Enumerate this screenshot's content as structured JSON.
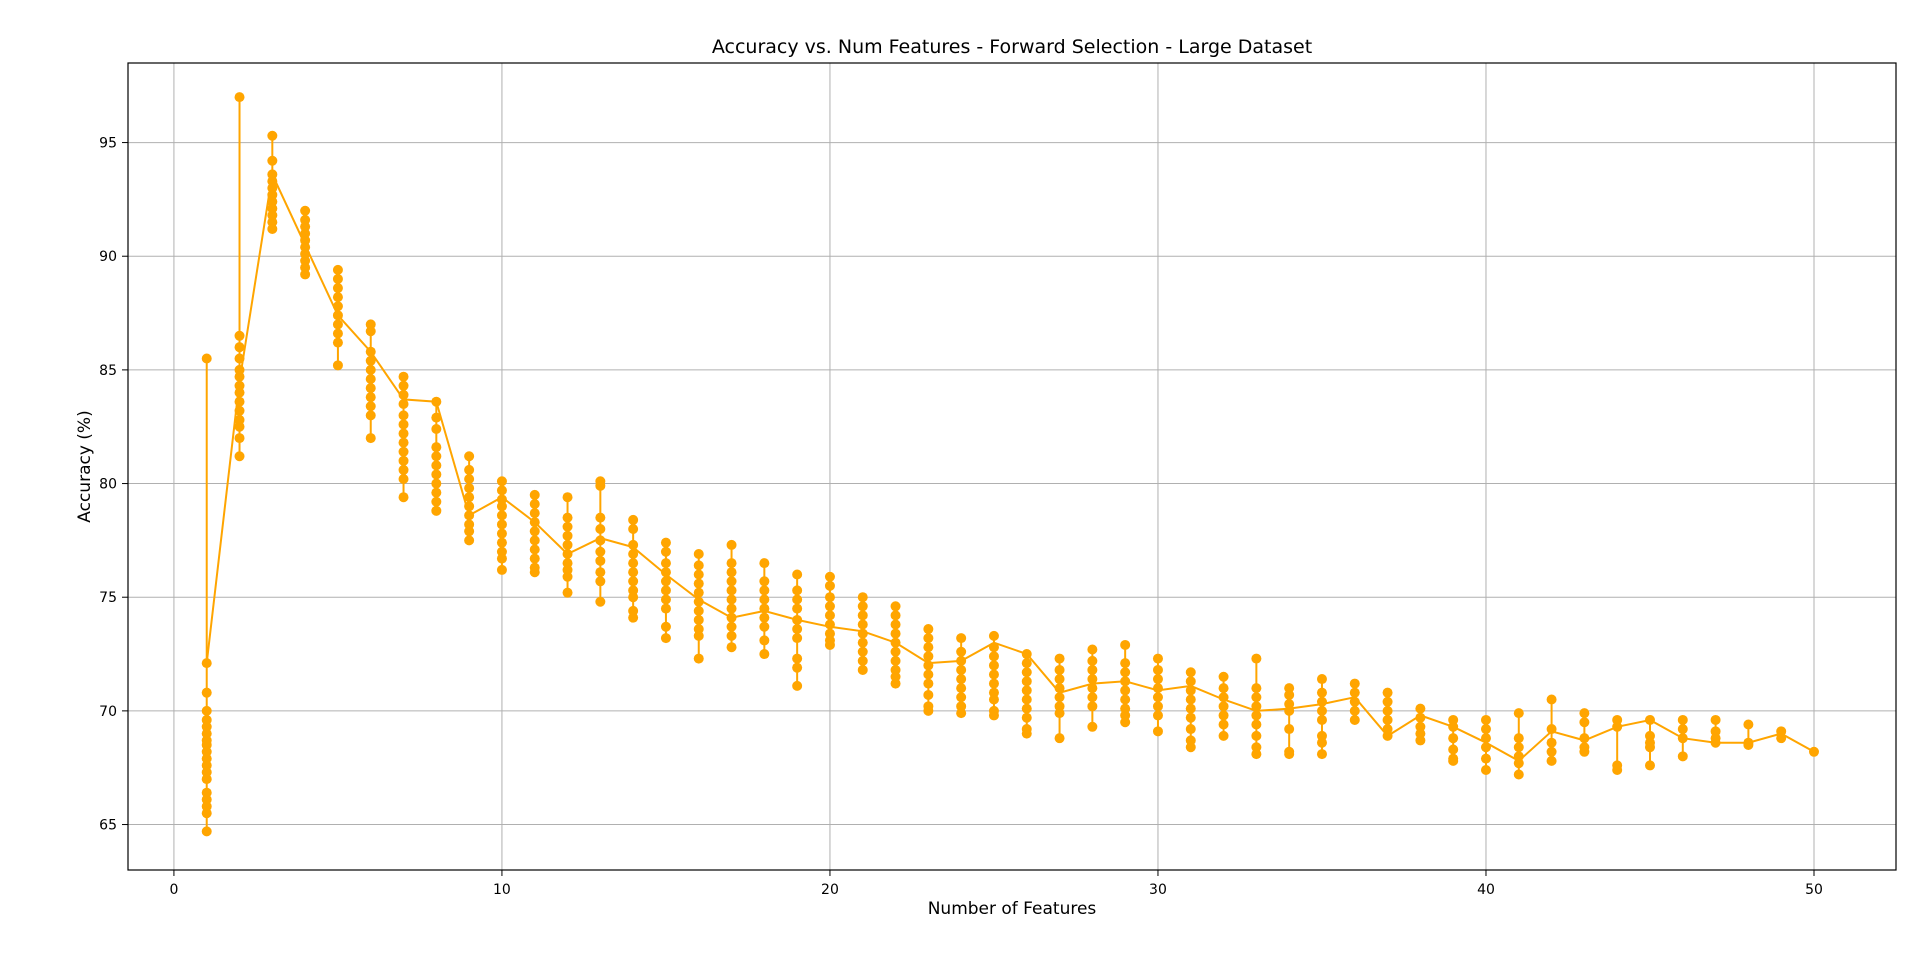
{
  "chart_data": {
    "type": "scatter",
    "title": "Accuracy vs. Num Features - Forward Selection - Large Dataset",
    "xlabel": "Number of Features",
    "ylabel": "Accuracy (%)",
    "xlim": [
      -1.4,
      52.5
    ],
    "ylim": [
      63.0,
      98.5
    ],
    "xticks": [
      0,
      10,
      20,
      30,
      40,
      50
    ],
    "yticks": [
      65,
      70,
      75,
      80,
      85,
      90,
      95
    ],
    "grid": true,
    "legend": "none",
    "color": "#FFA500",
    "x": [
      1,
      2,
      3,
      4,
      5,
      6,
      7,
      8,
      9,
      10,
      11,
      12,
      13,
      14,
      15,
      16,
      17,
      18,
      19,
      20,
      21,
      22,
      23,
      24,
      25,
      26,
      27,
      28,
      29,
      30,
      31,
      32,
      33,
      34,
      35,
      36,
      37,
      38,
      39,
      40,
      41,
      42,
      43,
      44,
      45,
      46,
      47,
      48,
      49,
      50
    ],
    "best_y": [
      72.1,
      84.5,
      93.6,
      90.5,
      87.4,
      85.8,
      83.7,
      83.6,
      78.6,
      79.4,
      78.3,
      76.9,
      77.6,
      77.2,
      76.0,
      74.9,
      74.1,
      74.4,
      74.0,
      73.7,
      73.5,
      73.0,
      72.1,
      72.2,
      73.0,
      72.5,
      70.8,
      71.2,
      71.3,
      70.9,
      71.1,
      70.5,
      70.0,
      70.1,
      70.3,
      70.6,
      68.9,
      69.8,
      69.3,
      68.6,
      67.8,
      69.1,
      68.7,
      69.3,
      69.6,
      68.8,
      68.6,
      68.6,
      69.0,
      68.2
    ],
    "evaluated": [
      {
        "x": 1,
        "y": [
          85.5,
          72.1,
          70.8,
          70.0,
          69.6,
          69.3,
          69.0,
          68.7,
          68.5,
          68.2,
          67.9,
          67.6,
          67.3,
          67.0,
          66.4,
          66.1,
          65.8,
          65.5,
          64.7
        ]
      },
      {
        "x": 2,
        "y": [
          97.0,
          86.5,
          86.0,
          85.5,
          85.0,
          84.7,
          84.3,
          84.0,
          83.6,
          83.2,
          82.8,
          82.5,
          82.0,
          81.2
        ]
      },
      {
        "x": 3,
        "y": [
          95.3,
          94.2,
          93.6,
          93.3,
          93.0,
          92.7,
          92.4,
          92.1,
          91.8,
          91.5,
          91.2
        ]
      },
      {
        "x": 4,
        "y": [
          92.0,
          91.6,
          91.3,
          91.0,
          90.7,
          90.4,
          90.1,
          89.8,
          89.5,
          89.2
        ]
      },
      {
        "x": 5,
        "y": [
          89.4,
          89.0,
          88.6,
          88.2,
          87.8,
          87.4,
          87.0,
          86.6,
          86.2,
          85.2
        ]
      },
      {
        "x": 6,
        "y": [
          87.0,
          86.7,
          85.8,
          85.4,
          85.0,
          84.6,
          84.2,
          83.8,
          83.4,
          83.0,
          82.0
        ]
      },
      {
        "x": 7,
        "y": [
          84.7,
          84.3,
          83.9,
          83.5,
          83.0,
          82.6,
          82.2,
          81.8,
          81.4,
          81.0,
          80.6,
          80.2,
          79.4
        ]
      },
      {
        "x": 8,
        "y": [
          83.6,
          82.9,
          82.4,
          81.6,
          81.2,
          80.8,
          80.4,
          80.0,
          79.6,
          79.2,
          78.8
        ]
      },
      {
        "x": 9,
        "y": [
          81.2,
          80.6,
          80.2,
          79.8,
          79.4,
          79.0,
          78.6,
          78.2,
          77.9,
          77.5
        ]
      },
      {
        "x": 10,
        "y": [
          80.1,
          79.7,
          79.3,
          79.0,
          78.6,
          78.2,
          77.8,
          77.4,
          77.0,
          76.7,
          76.2
        ]
      },
      {
        "x": 11,
        "y": [
          79.5,
          79.1,
          78.7,
          78.3,
          77.9,
          77.5,
          77.1,
          76.7,
          76.3,
          76.1
        ]
      },
      {
        "x": 12,
        "y": [
          79.4,
          78.5,
          78.1,
          77.7,
          77.3,
          76.9,
          76.5,
          76.2,
          75.9,
          75.2
        ]
      },
      {
        "x": 13,
        "y": [
          80.1,
          79.9,
          78.5,
          78.0,
          77.5,
          77.0,
          76.6,
          76.1,
          75.7,
          74.8
        ]
      },
      {
        "x": 14,
        "y": [
          78.4,
          78.0,
          77.3,
          76.9,
          76.5,
          76.1,
          75.7,
          75.3,
          75.0,
          74.4,
          74.1
        ]
      },
      {
        "x": 15,
        "y": [
          77.4,
          77.0,
          76.5,
          76.1,
          75.7,
          75.3,
          74.9,
          74.5,
          73.7,
          73.2
        ]
      },
      {
        "x": 16,
        "y": [
          76.9,
          76.4,
          76.0,
          75.6,
          75.2,
          74.8,
          74.4,
          74.0,
          73.6,
          73.3,
          72.3
        ]
      },
      {
        "x": 17,
        "y": [
          77.3,
          76.5,
          76.1,
          75.7,
          75.3,
          74.9,
          74.5,
          74.1,
          73.7,
          73.3,
          72.8
        ]
      },
      {
        "x": 18,
        "y": [
          76.5,
          75.7,
          75.3,
          74.9,
          74.5,
          74.1,
          73.7,
          73.1,
          72.5
        ]
      },
      {
        "x": 19,
        "y": [
          76.0,
          75.3,
          74.9,
          74.5,
          74.0,
          73.6,
          73.2,
          72.3,
          71.9,
          71.1
        ]
      },
      {
        "x": 20,
        "y": [
          75.9,
          75.5,
          75.0,
          74.6,
          74.2,
          73.8,
          73.4,
          73.1,
          72.9
        ]
      },
      {
        "x": 21,
        "y": [
          75.0,
          74.6,
          74.2,
          73.8,
          73.4,
          73.0,
          72.6,
          72.2,
          71.8
        ]
      },
      {
        "x": 22,
        "y": [
          74.6,
          74.2,
          73.8,
          73.4,
          73.0,
          72.6,
          72.2,
          71.8,
          71.5,
          71.2
        ]
      },
      {
        "x": 23,
        "y": [
          73.6,
          73.2,
          72.8,
          72.4,
          72.0,
          71.6,
          71.2,
          70.7,
          70.2,
          70.0
        ]
      },
      {
        "x": 24,
        "y": [
          73.2,
          72.6,
          72.2,
          71.8,
          71.4,
          71.0,
          70.6,
          70.2,
          69.9
        ]
      },
      {
        "x": 25,
        "y": [
          73.3,
          72.8,
          72.4,
          72.0,
          71.6,
          71.2,
          70.8,
          70.5,
          70.0,
          69.8
        ]
      },
      {
        "x": 26,
        "y": [
          72.5,
          72.1,
          71.7,
          71.3,
          70.9,
          70.5,
          70.1,
          69.7,
          69.2,
          69.0
        ]
      },
      {
        "x": 27,
        "y": [
          72.3,
          71.8,
          71.4,
          71.0,
          70.6,
          70.2,
          69.9,
          68.8
        ]
      },
      {
        "x": 28,
        "y": [
          72.7,
          72.2,
          71.8,
          71.4,
          71.0,
          70.6,
          70.2,
          69.3
        ]
      },
      {
        "x": 29,
        "y": [
          72.9,
          72.1,
          71.7,
          71.3,
          70.9,
          70.5,
          70.1,
          69.8,
          69.5
        ]
      },
      {
        "x": 30,
        "y": [
          72.3,
          71.8,
          71.4,
          71.0,
          70.6,
          70.2,
          69.8,
          69.1
        ]
      },
      {
        "x": 31,
        "y": [
          71.7,
          71.3,
          70.9,
          70.5,
          70.1,
          69.7,
          69.2,
          68.7,
          68.4
        ]
      },
      {
        "x": 32,
        "y": [
          71.5,
          71.0,
          70.6,
          70.2,
          69.8,
          69.4,
          68.9
        ]
      },
      {
        "x": 33,
        "y": [
          72.3,
          71.0,
          70.6,
          70.2,
          69.8,
          69.4,
          68.9,
          68.4,
          68.1
        ]
      },
      {
        "x": 34,
        "y": [
          71.0,
          70.7,
          70.3,
          70.0,
          69.2,
          68.2,
          68.1
        ]
      },
      {
        "x": 35,
        "y": [
          71.4,
          70.8,
          70.4,
          70.0,
          69.6,
          68.9,
          68.6,
          68.1
        ]
      },
      {
        "x": 36,
        "y": [
          71.2,
          70.8,
          70.4,
          70.0,
          69.6
        ]
      },
      {
        "x": 37,
        "y": [
          70.8,
          70.4,
          70.0,
          69.6,
          69.2,
          68.9
        ]
      },
      {
        "x": 38,
        "y": [
          70.1,
          69.7,
          69.3,
          69.0,
          68.7
        ]
      },
      {
        "x": 39,
        "y": [
          69.6,
          69.3,
          68.8,
          68.3,
          67.9,
          67.8
        ]
      },
      {
        "x": 40,
        "y": [
          69.6,
          69.2,
          68.8,
          68.4,
          67.9,
          67.4
        ]
      },
      {
        "x": 41,
        "y": [
          69.9,
          68.8,
          68.4,
          68.0,
          67.7,
          67.2
        ]
      },
      {
        "x": 42,
        "y": [
          70.5,
          69.2,
          68.6,
          68.2,
          67.8
        ]
      },
      {
        "x": 43,
        "y": [
          69.9,
          69.5,
          68.8,
          68.4,
          68.2
        ]
      },
      {
        "x": 44,
        "y": [
          69.6,
          69.3,
          67.6,
          67.4
        ]
      },
      {
        "x": 45,
        "y": [
          69.6,
          68.9,
          68.6,
          68.4,
          67.6
        ]
      },
      {
        "x": 46,
        "y": [
          69.6,
          69.2,
          68.8,
          68.0
        ]
      },
      {
        "x": 47,
        "y": [
          69.6,
          69.1,
          68.8,
          68.6
        ]
      },
      {
        "x": 48,
        "y": [
          69.4,
          68.6,
          68.5
        ]
      },
      {
        "x": 49,
        "y": [
          69.1,
          68.8
        ]
      },
      {
        "x": 50,
        "y": [
          68.2
        ]
      }
    ]
  }
}
